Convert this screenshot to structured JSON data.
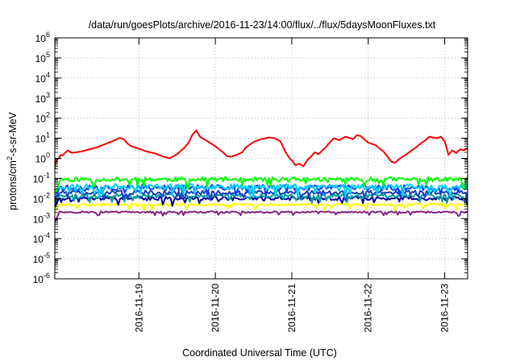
{
  "chart_data": {
    "type": "line",
    "title": "/data/run/goesPlots/archive/2016-11-23/14:00/flux/../flux/5daysMoonFluxes.txt",
    "xlabel": "Coordinated Universal Time (UTC)",
    "ylabel": {
      "prefix": "protons/cm",
      "sup": "2",
      "suffix": "-s-sr-MeV"
    },
    "y_scale": "log",
    "ylim_exponents": [
      -6,
      6
    ],
    "y_ticks": [
      {
        "base": "10",
        "exp": "6"
      },
      {
        "base": "10",
        "exp": "5"
      },
      {
        "base": "10",
        "exp": "4"
      },
      {
        "base": "10",
        "exp": "3"
      },
      {
        "base": "10",
        "exp": "2"
      },
      {
        "base": "10",
        "exp": "1"
      },
      {
        "base": "10",
        "exp": "0"
      },
      {
        "base": "10",
        "exp": "-1"
      },
      {
        "base": "10",
        "exp": "-2"
      },
      {
        "base": "10",
        "exp": "-3"
      },
      {
        "base": "10",
        "exp": "-4"
      },
      {
        "base": "10",
        "exp": "-5"
      },
      {
        "base": "10",
        "exp": "-6"
      }
    ],
    "xlim_days": [
      -1.1,
      4.3
    ],
    "x_ticks": [
      {
        "day": 0,
        "label": "2016-11-19"
      },
      {
        "day": 1,
        "label": "2016-11-20"
      },
      {
        "day": 2,
        "label": "2016-11-21"
      },
      {
        "day": 3,
        "label": "2016-11-22"
      },
      {
        "day": 4,
        "label": "2016-11-23"
      }
    ],
    "grid": true,
    "series": [
      {
        "color": "#ff0000",
        "width": 2,
        "points": [
          [
            -1.1,
            0.3
          ],
          [
            -1.08,
            0.8
          ],
          [
            -1.05,
            1.0
          ],
          [
            -1.02,
            1.5
          ],
          [
            -1.0,
            1.4
          ],
          [
            -0.97,
            1.8
          ],
          [
            -0.93,
            2.5
          ],
          [
            -0.88,
            1.9
          ],
          [
            -0.82,
            2.0
          ],
          [
            -0.75,
            2.2
          ],
          [
            -0.65,
            2.8
          ],
          [
            -0.55,
            3.5
          ],
          [
            -0.45,
            5.0
          ],
          [
            -0.35,
            7.0
          ],
          [
            -0.25,
            10.5
          ],
          [
            -0.2,
            9.0
          ],
          [
            -0.15,
            5.5
          ],
          [
            -0.1,
            4.0
          ],
          [
            0.0,
            3.0
          ],
          [
            0.1,
            2.2
          ],
          [
            0.2,
            1.8
          ],
          [
            0.3,
            1.3
          ],
          [
            0.4,
            1.0
          ],
          [
            0.5,
            1.6
          ],
          [
            0.6,
            3.5
          ],
          [
            0.65,
            6.0
          ],
          [
            0.7,
            15.0
          ],
          [
            0.75,
            25.0
          ],
          [
            0.8,
            12.0
          ],
          [
            0.85,
            9.0
          ],
          [
            0.9,
            7.0
          ],
          [
            1.0,
            4.0
          ],
          [
            1.1,
            2.0
          ],
          [
            1.15,
            1.3
          ],
          [
            1.2,
            1.2
          ],
          [
            1.28,
            1.5
          ],
          [
            1.35,
            2.0
          ],
          [
            1.4,
            3.5
          ],
          [
            1.5,
            6.5
          ],
          [
            1.6,
            9.0
          ],
          [
            1.7,
            11.0
          ],
          [
            1.78,
            10.0
          ],
          [
            1.85,
            7.0
          ],
          [
            1.92,
            2.0
          ],
          [
            1.97,
            1.0
          ],
          [
            2.0,
            0.8
          ],
          [
            2.05,
            0.45
          ],
          [
            2.1,
            0.55
          ],
          [
            2.15,
            0.4
          ],
          [
            2.2,
            0.8
          ],
          [
            2.25,
            1.2
          ],
          [
            2.3,
            2.0
          ],
          [
            2.35,
            1.6
          ],
          [
            2.4,
            2.5
          ],
          [
            2.45,
            3.8
          ],
          [
            2.5,
            6.5
          ],
          [
            2.55,
            10.0
          ],
          [
            2.62,
            8.0
          ],
          [
            2.7,
            12.0
          ],
          [
            2.8,
            9.0
          ],
          [
            2.85,
            14.0
          ],
          [
            2.9,
            13.0
          ],
          [
            3.0,
            6.0
          ],
          [
            3.1,
            4.5
          ],
          [
            3.15,
            3.0
          ],
          [
            3.2,
            2.2
          ],
          [
            3.3,
            0.7
          ],
          [
            3.35,
            0.6
          ],
          [
            3.4,
            0.9
          ],
          [
            3.5,
            1.6
          ],
          [
            3.6,
            3.0
          ],
          [
            3.7,
            6.0
          ],
          [
            3.75,
            8.0
          ],
          [
            3.8,
            12.0
          ],
          [
            3.9,
            10.0
          ],
          [
            3.95,
            12.0
          ],
          [
            4.0,
            7.0
          ],
          [
            4.05,
            1.5
          ],
          [
            4.1,
            2.5
          ],
          [
            4.15,
            1.8
          ],
          [
            4.2,
            2.8
          ],
          [
            4.25,
            2.5
          ],
          [
            4.3,
            3.2
          ]
        ]
      },
      {
        "color": "#00ff00",
        "width": 2,
        "base": 0.09,
        "amp": 0.22,
        "dips": 0.4,
        "seed": 11
      },
      {
        "color": "#00d2ff",
        "width": 2,
        "base": 0.04,
        "amp": 0.25,
        "dips": 0.5,
        "seed": 23
      },
      {
        "color": "#0040ff",
        "width": 2,
        "base": 0.035,
        "amp": 0.28,
        "dips": 0.45,
        "seed": 37
      },
      {
        "color": "#1a3fbf",
        "width": 2,
        "base": 0.02,
        "amp": 0.2,
        "dips": 0.35,
        "seed": 51
      },
      {
        "color": "#00a0a0",
        "width": 2,
        "base": 0.014,
        "amp": 0.18,
        "dips": 0.35,
        "seed": 63
      },
      {
        "color": "#0000a0",
        "width": 2,
        "base": 0.01,
        "amp": 0.2,
        "dips": 0.3,
        "seed": 77
      },
      {
        "color": "#ffff00",
        "width": 2,
        "base": 0.005,
        "amp": 0.12,
        "dips": 0.3,
        "seed": 89
      },
      {
        "color": "#882288",
        "width": 2,
        "base": 0.0021,
        "amp": 0.08,
        "dips": 0.2,
        "seed": 97
      }
    ]
  }
}
